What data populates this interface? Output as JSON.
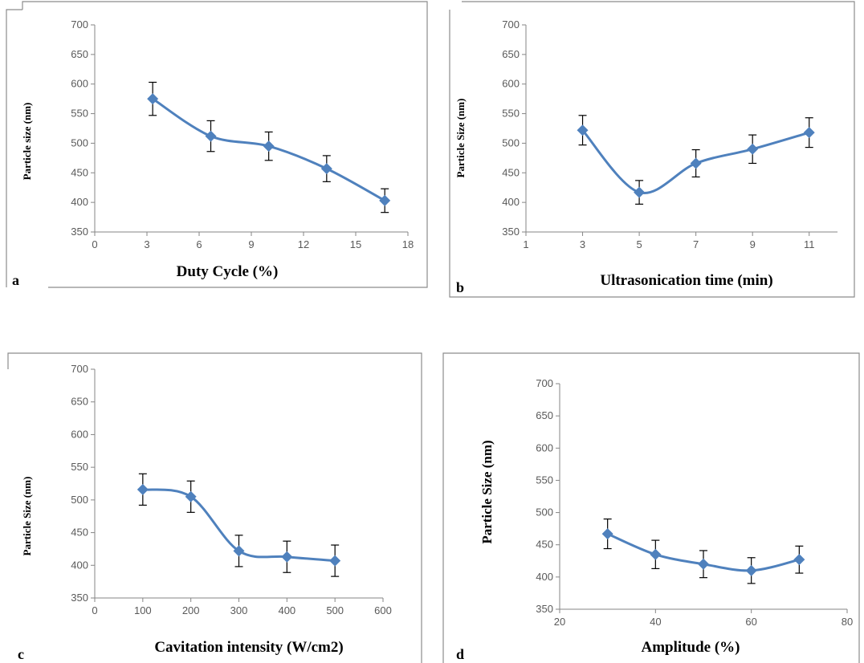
{
  "colors": {
    "series": "#4f81bd",
    "axis": "#868686",
    "frame": "#8c8c8c"
  },
  "chart_data": [
    {
      "panel": "a",
      "type": "line",
      "xlabel": "Duty Cycle (%)",
      "ylabel": "Particle size (nm)",
      "xlim": [
        0,
        18
      ],
      "xticks": [
        "0",
        "3",
        "6",
        "9",
        "12",
        "15",
        "18"
      ],
      "ylim": [
        350,
        700
      ],
      "yticks": [
        "350",
        "400",
        "450",
        "500",
        "550",
        "600",
        "650",
        "700"
      ],
      "grid": false,
      "x": [
        3.33,
        6.67,
        10,
        13.33,
        16.67
      ],
      "y": [
        575,
        512,
        495,
        457,
        403
      ],
      "error": [
        28,
        26,
        24,
        22,
        20
      ]
    },
    {
      "panel": "b",
      "type": "line",
      "xlabel": "Ultrasonication time (min)",
      "ylabel": "Particle Size (nm)",
      "xlim": [
        1,
        12
      ],
      "xticks": [
        "1",
        "3",
        "5",
        "7",
        "9",
        "11"
      ],
      "ylim": [
        350,
        700
      ],
      "yticks": [
        "350",
        "400",
        "450",
        "500",
        "550",
        "600",
        "650",
        "700"
      ],
      "grid": false,
      "x": [
        3,
        5,
        7,
        9,
        11
      ],
      "y": [
        522,
        417,
        466,
        490,
        518
      ],
      "error": [
        25,
        20,
        23,
        24,
        25
      ]
    },
    {
      "panel": "c",
      "type": "line",
      "xlabel": "Cavitation intensity (W/cm2)",
      "ylabel": "Particle Size (nm)",
      "xlim": [
        0,
        600
      ],
      "xticks": [
        "0",
        "100",
        "200",
        "300",
        "400",
        "500",
        "600"
      ],
      "ylim": [
        350,
        700
      ],
      "yticks": [
        "350",
        "400",
        "450",
        "500",
        "550",
        "600",
        "650",
        "700"
      ],
      "grid": false,
      "x": [
        100,
        200,
        300,
        400,
        500
      ],
      "y": [
        516,
        505,
        422,
        413,
        407
      ],
      "error": [
        24,
        24,
        24,
        24,
        24
      ]
    },
    {
      "panel": "d",
      "type": "line",
      "xlabel": "Amplitude (%)",
      "ylabel": "Particle Size (nm)",
      "xlim": [
        20,
        80
      ],
      "xticks": [
        "20",
        "40",
        "60",
        "80"
      ],
      "ylim": [
        350,
        700
      ],
      "yticks": [
        "350",
        "400",
        "450",
        "500",
        "550",
        "600",
        "650",
        "700"
      ],
      "grid": false,
      "x": [
        30,
        40,
        50,
        60,
        70
      ],
      "y": [
        467,
        435,
        420,
        410,
        427
      ],
      "error": [
        23,
        22,
        21,
        20,
        21
      ]
    }
  ]
}
